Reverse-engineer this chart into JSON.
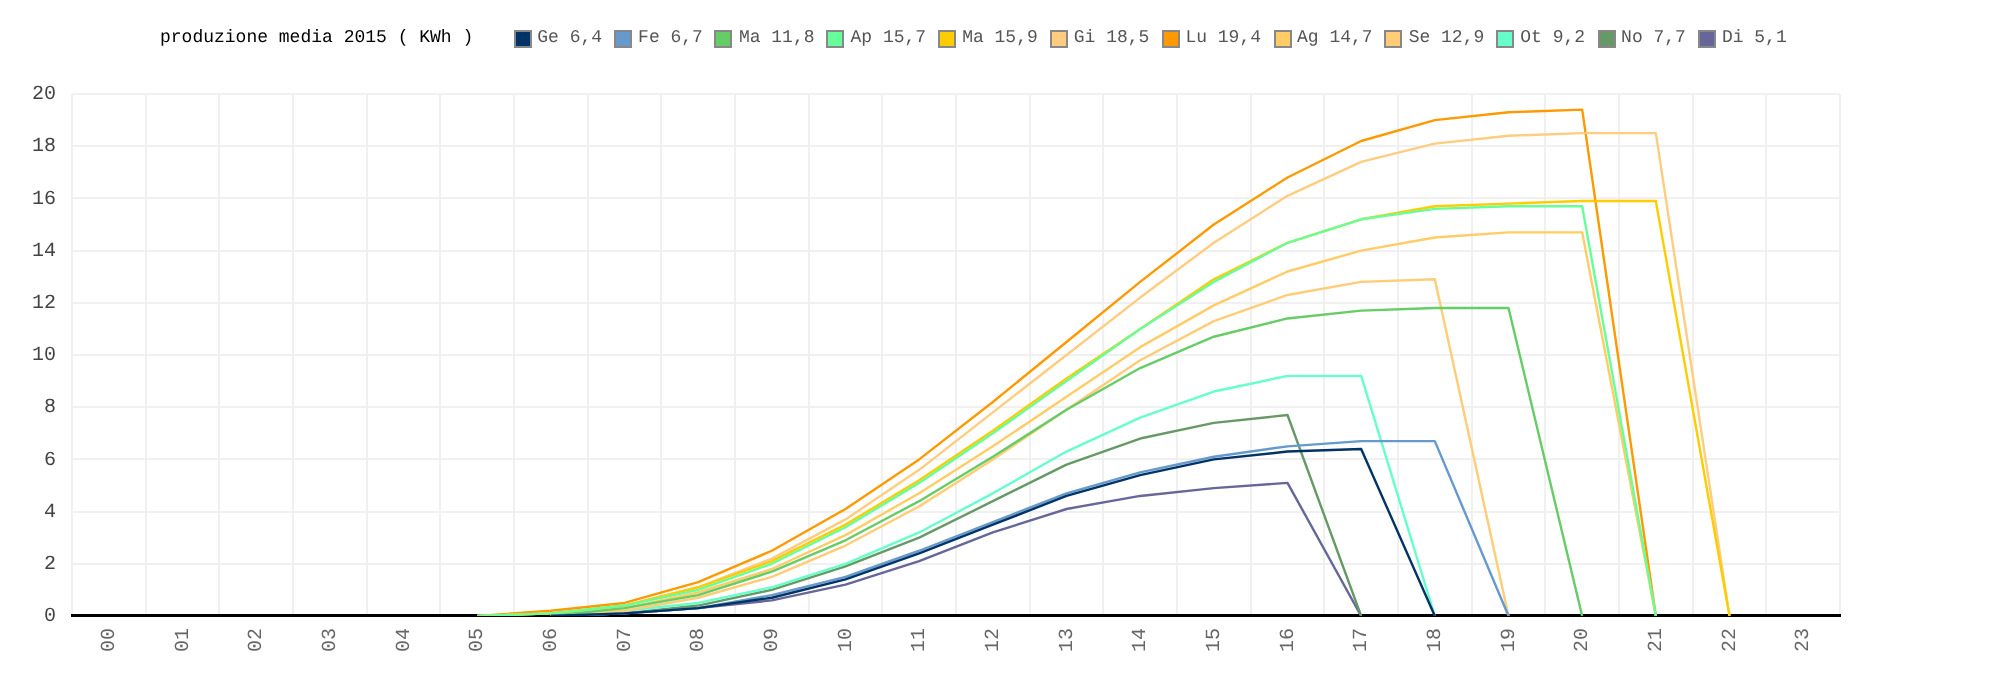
{
  "chart_data": {
    "type": "line",
    "title": "produzione media 2015 ( KWh )",
    "categories": [
      "00",
      "01",
      "02",
      "03",
      "04",
      "05",
      "06",
      "07",
      "08",
      "09",
      "10",
      "11",
      "12",
      "13",
      "14",
      "15",
      "16",
      "17",
      "18",
      "19",
      "20",
      "21",
      "22",
      "23"
    ],
    "ylim": [
      0,
      20
    ],
    "yticks": [
      0,
      2,
      4,
      6,
      8,
      10,
      12,
      14,
      16,
      18,
      20
    ],
    "grid": true,
    "legend": "top",
    "marker": "none",
    "line_style": "solid",
    "series": [
      {
        "name": "Ge 6,4",
        "color": "#003366",
        "values": [
          null,
          null,
          null,
          null,
          null,
          null,
          0,
          0.1,
          0.3,
          0.7,
          1.4,
          2.4,
          3.5,
          4.6,
          5.4,
          6.0,
          6.3,
          6.4,
          0,
          null,
          null,
          null,
          null,
          null
        ]
      },
      {
        "name": "Fe 6,7",
        "color": "#6699cc",
        "values": [
          null,
          null,
          null,
          null,
          null,
          null,
          0,
          0.1,
          0.3,
          0.8,
          1.5,
          2.5,
          3.6,
          4.7,
          5.5,
          6.1,
          6.5,
          6.7,
          6.7,
          0,
          null,
          null,
          null,
          null
        ]
      },
      {
        "name": "Ma 11,8",
        "color": "#66cc66",
        "values": [
          null,
          null,
          null,
          null,
          null,
          null,
          0,
          0.3,
          0.8,
          1.7,
          2.9,
          4.4,
          6.1,
          7.9,
          9.5,
          10.7,
          11.4,
          11.7,
          11.8,
          11.8,
          0,
          null,
          null,
          null
        ]
      },
      {
        "name": "Ap 15,7",
        "color": "#66ff99",
        "values": [
          null,
          null,
          null,
          null,
          null,
          0,
          0.1,
          0.4,
          1.0,
          2.0,
          3.4,
          5.1,
          7.0,
          9.0,
          11.0,
          12.8,
          14.3,
          15.2,
          15.6,
          15.7,
          15.7,
          0,
          null,
          null
        ]
      },
      {
        "name": "Ma 15,9",
        "color": "#ffcc00",
        "values": [
          null,
          null,
          null,
          null,
          null,
          0,
          0.1,
          0.4,
          1.1,
          2.1,
          3.5,
          5.2,
          7.1,
          9.1,
          11.0,
          12.9,
          14.3,
          15.2,
          15.7,
          15.8,
          15.9,
          15.9,
          0,
          null
        ]
      },
      {
        "name": "Gi 18,5",
        "color": "#ffcc80",
        "values": [
          null,
          null,
          null,
          null,
          null,
          0,
          0.1,
          0.4,
          1.1,
          2.2,
          3.7,
          5.6,
          7.8,
          10.0,
          12.2,
          14.3,
          16.1,
          17.4,
          18.1,
          18.4,
          18.5,
          18.5,
          0,
          null
        ]
      },
      {
        "name": "Lu 19,4",
        "color": "#ff9900",
        "values": [
          null,
          null,
          null,
          null,
          null,
          0,
          0.2,
          0.5,
          1.3,
          2.5,
          4.1,
          6.0,
          8.2,
          10.5,
          12.8,
          15.0,
          16.8,
          18.2,
          19.0,
          19.3,
          19.4,
          0,
          null,
          null
        ]
      },
      {
        "name": "Ag 14,7",
        "color": "#ffcc66",
        "values": [
          null,
          null,
          null,
          null,
          null,
          null,
          0,
          0.3,
          0.9,
          1.8,
          3.1,
          4.7,
          6.5,
          8.4,
          10.3,
          11.9,
          13.2,
          14.0,
          14.5,
          14.7,
          14.7,
          0,
          null,
          null
        ]
      },
      {
        "name": "Se 12,9",
        "color": "#ffcc77",
        "values": [
          null,
          null,
          null,
          null,
          null,
          null,
          0,
          0.2,
          0.7,
          1.5,
          2.7,
          4.2,
          6.0,
          7.9,
          9.8,
          11.3,
          12.3,
          12.8,
          12.9,
          0,
          null,
          null,
          null,
          null
        ]
      },
      {
        "name": "Ot 9,2",
        "color": "#66ffcc",
        "values": [
          null,
          null,
          null,
          null,
          null,
          null,
          0,
          0.2,
          0.5,
          1.1,
          2.0,
          3.2,
          4.7,
          6.3,
          7.6,
          8.6,
          9.2,
          9.2,
          0,
          null,
          null,
          null,
          null,
          null
        ]
      },
      {
        "name": "No 7,7",
        "color": "#669966",
        "values": [
          null,
          null,
          null,
          null,
          null,
          null,
          0,
          0.1,
          0.4,
          1.0,
          1.9,
          3.0,
          4.4,
          5.8,
          6.8,
          7.4,
          7.7,
          0,
          null,
          null,
          null,
          null,
          null,
          null
        ]
      },
      {
        "name": "Di 5,1",
        "color": "#666699",
        "values": [
          null,
          null,
          null,
          null,
          null,
          null,
          0,
          0.1,
          0.3,
          0.6,
          1.2,
          2.1,
          3.2,
          4.1,
          4.6,
          4.9,
          5.1,
          0,
          null,
          null,
          null,
          null,
          null,
          null
        ]
      }
    ]
  }
}
